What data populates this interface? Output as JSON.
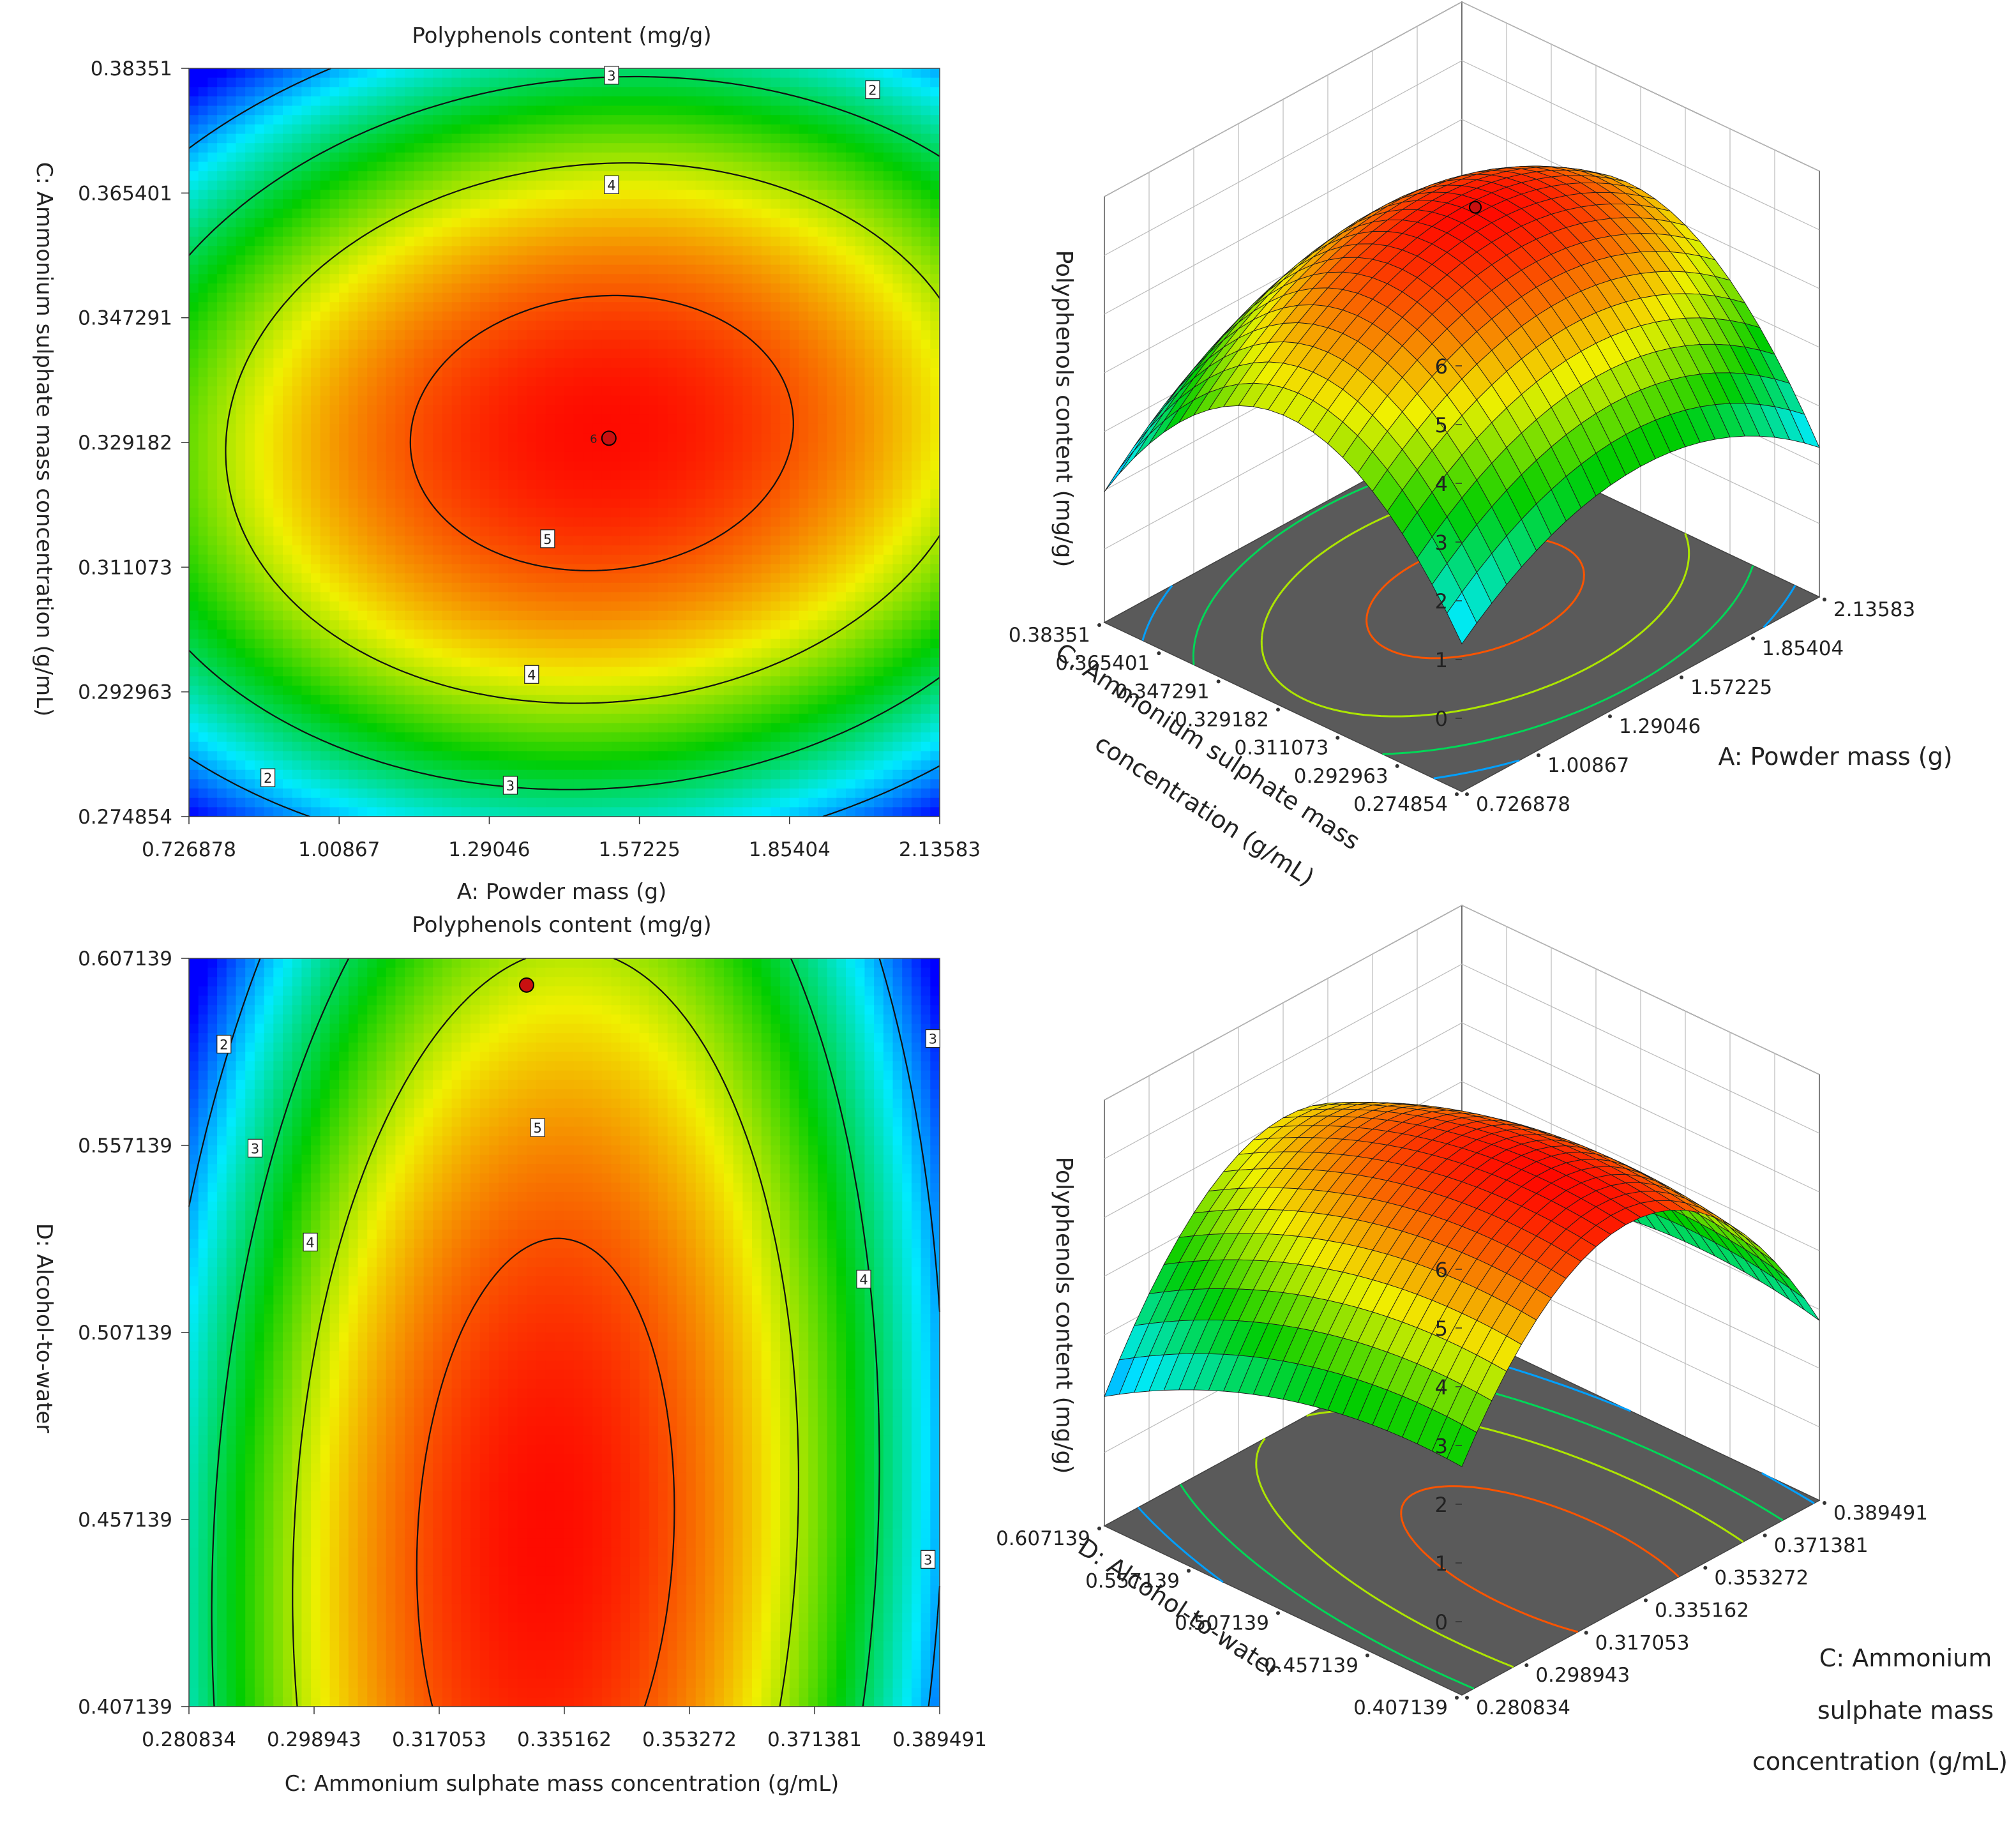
{
  "chart_data": [
    {
      "type": "contour",
      "title": "Polyphenols content (mg/g)",
      "xlabel": "A: Powder mass (g)",
      "ylabel": "C: Ammonium sulphate mass concentration (g/mL)",
      "x_ticks": [
        "0.726878",
        "1.00867",
        "1.29046",
        "1.57225",
        "1.85404",
        "2.13583"
      ],
      "y_ticks": [
        "0.274854",
        "0.292963",
        "0.311073",
        "0.329182",
        "0.347291",
        "0.365401",
        "0.38351"
      ],
      "xlim": [
        0.726878,
        2.13583
      ],
      "ylim": [
        0.274854,
        0.38351
      ],
      "levels": [
        {
          "value": 5,
          "label": "5",
          "label_at": [
            1.4,
            0.3152
          ]
        },
        {
          "value": 4,
          "label": "4",
          "label_at": [
            1.37,
            0.2955
          ]
        },
        {
          "value": 4,
          "label": "4",
          "label_at": [
            1.52,
            0.3666
          ]
        },
        {
          "value": 3,
          "label": "3",
          "label_at": [
            1.33,
            0.2794
          ]
        },
        {
          "value": 3,
          "label": "3",
          "label_at": [
            1.52,
            0.3825
          ]
        },
        {
          "value": 2,
          "label": "2",
          "label_at": [
            0.875,
            0.2805
          ]
        },
        {
          "value": 2,
          "label": "2",
          "label_at": [
            2.01,
            0.3804
          ]
        }
      ],
      "optimum": {
        "x": 1.515,
        "y": 0.3298,
        "label": "6"
      },
      "surface_range": [
        1.3,
        5.4
      ]
    },
    {
      "type": "surface3d",
      "zlabel": "Polyphenols content (mg/g)",
      "xlabel": "A: Powder mass (g)",
      "ylabel": "C: Ammonium sulphate mass concentration (g/mL)",
      "ylabel_lines": [
        "C: Ammonium sulphate mass",
        "concentration (g/mL)"
      ],
      "x_ticks": [
        "0.726878",
        "1.00867",
        "1.29046",
        "1.57225",
        "1.85404",
        "2.13583"
      ],
      "y_ticks": [
        "0.274854",
        "0.292963",
        "0.311073",
        "0.329182",
        "0.347291",
        "0.365401",
        "0.38351"
      ],
      "z_ticks": [
        "0",
        "1",
        "2",
        "3",
        "4",
        "5",
        "6"
      ],
      "zlim": [
        0,
        6
      ],
      "optimum_z": 5.2
    },
    {
      "type": "contour",
      "title": "Polyphenols content (mg/g)",
      "xlabel": "C: Ammonium sulphate mass concentration (g/mL)",
      "ylabel": "D: Alcohol-to-water",
      "x_ticks": [
        "0.280834",
        "0.298943",
        "0.317053",
        "0.335162",
        "0.353272",
        "0.371381",
        "0.389491"
      ],
      "y_ticks": [
        "0.407139",
        "0.457139",
        "0.507139",
        "0.557139",
        "0.607139"
      ],
      "xlim": [
        0.280834,
        0.389491
      ],
      "ylim": [
        0.407139,
        0.607139
      ],
      "levels": [
        {
          "value": 5,
          "label": "5",
          "label_at": [
            0.3313,
            0.5619
          ]
        },
        {
          "value": 4,
          "label": "4",
          "label_at": [
            0.2984,
            0.5313
          ]
        },
        {
          "value": 4,
          "label": "4",
          "label_at": [
            0.3785,
            0.5214
          ]
        },
        {
          "value": 3,
          "label": "3",
          "label_at": [
            0.2904,
            0.5564
          ]
        },
        {
          "value": 3,
          "label": "3",
          "label_at": [
            0.3885,
            0.5857
          ]
        },
        {
          "value": 3,
          "label": "3",
          "label_at": [
            0.3878,
            0.4465
          ]
        },
        {
          "value": 2,
          "label": "2",
          "label_at": [
            0.2859,
            0.5842
          ]
        }
      ],
      "optimum": {
        "x": 0.3297,
        "y": 0.6
      },
      "surface_range": [
        1.3,
        5.4
      ]
    },
    {
      "type": "surface3d",
      "zlabel": "Polyphenols content (mg/g)",
      "xlabel": "C: Ammonium sulphate mass concentration (g/mL)",
      "xlabel_lines": [
        "C: Ammonium",
        "sulphate mass",
        "concentration (g/mL)"
      ],
      "ylabel": "D: Alcohol-to-water",
      "x_ticks": [
        "0.280834",
        "0.298943",
        "0.317053",
        "0.335162",
        "0.353272",
        "0.371381",
        "0.389491"
      ],
      "y_ticks": [
        "0.407139",
        "0.457139",
        "0.507139",
        "0.557139",
        "0.607139"
      ],
      "z_ticks": [
        "0",
        "1",
        "2",
        "3",
        "4",
        "5",
        "6"
      ],
      "zlim": [
        0,
        6
      ]
    }
  ]
}
